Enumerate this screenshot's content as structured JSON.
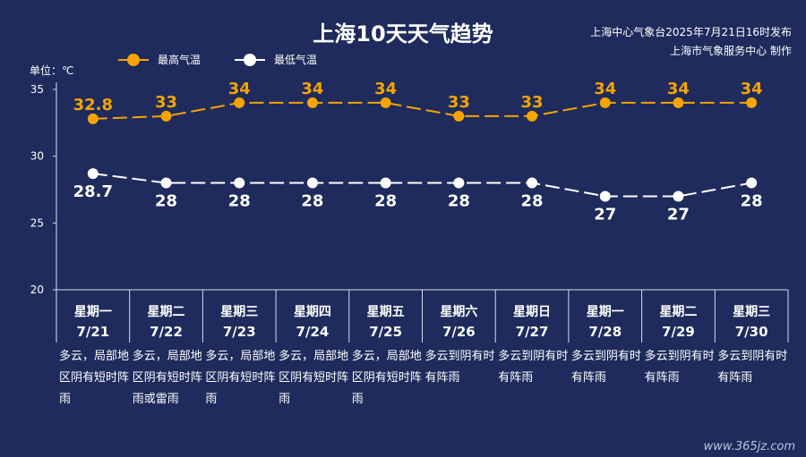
{
  "title": "上海10天天气趋势",
  "issuer_line1": "上海中心气象台2025年7月21日16时发布",
  "issuer_line2": "上海市气象服务中心 制作",
  "unit_label": "单位：℃",
  "watermark": "www.365jz.com",
  "colors": {
    "background": "#1e2b5c",
    "high": "#f5a400",
    "low": "#ffffff",
    "axis": "#d9def0"
  },
  "chart_data": {
    "type": "line",
    "categories": [
      "7/21",
      "7/22",
      "7/23",
      "7/24",
      "7/25",
      "7/26",
      "7/27",
      "7/28",
      "7/29",
      "7/30"
    ],
    "weekdays": [
      "星期一",
      "星期二",
      "星期三",
      "星期四",
      "星期五",
      "星期六",
      "星期日",
      "星期一",
      "星期二",
      "星期三"
    ],
    "weather": [
      "多云，局部地区阴有短时阵雨",
      "多云，局部地区阴有短时阵雨或雷雨",
      "多云，局部地区阴有短时阵雨",
      "多云，局部地区阴有短时阵雨",
      "多云，局部地区阴有短时阵雨",
      "多云到阴有时有阵雨",
      "多云到阴有时有阵雨",
      "多云到阴有时有阵雨",
      "多云到阴有时有阵雨",
      "多云到阴有时有阵雨"
    ],
    "series": [
      {
        "name": "最高气温",
        "labels": [
          "32.8",
          "33",
          "34",
          "34",
          "34",
          "33",
          "33",
          "34",
          "34",
          "34"
        ],
        "values": [
          32.8,
          33,
          34,
          34,
          34,
          33,
          33,
          34,
          34,
          34
        ]
      },
      {
        "name": "最低气温",
        "labels": [
          "28.7",
          "28",
          "28",
          "28",
          "28",
          "28",
          "28",
          "27",
          "27",
          "28"
        ],
        "values": [
          28.7,
          28,
          28,
          28,
          28,
          28,
          28,
          27,
          27,
          28
        ]
      }
    ],
    "yticks": [
      "35",
      "30",
      "25",
      "20"
    ],
    "ylim": [
      20,
      35
    ],
    "legend_position": "top-left",
    "line_style": "dashed"
  }
}
